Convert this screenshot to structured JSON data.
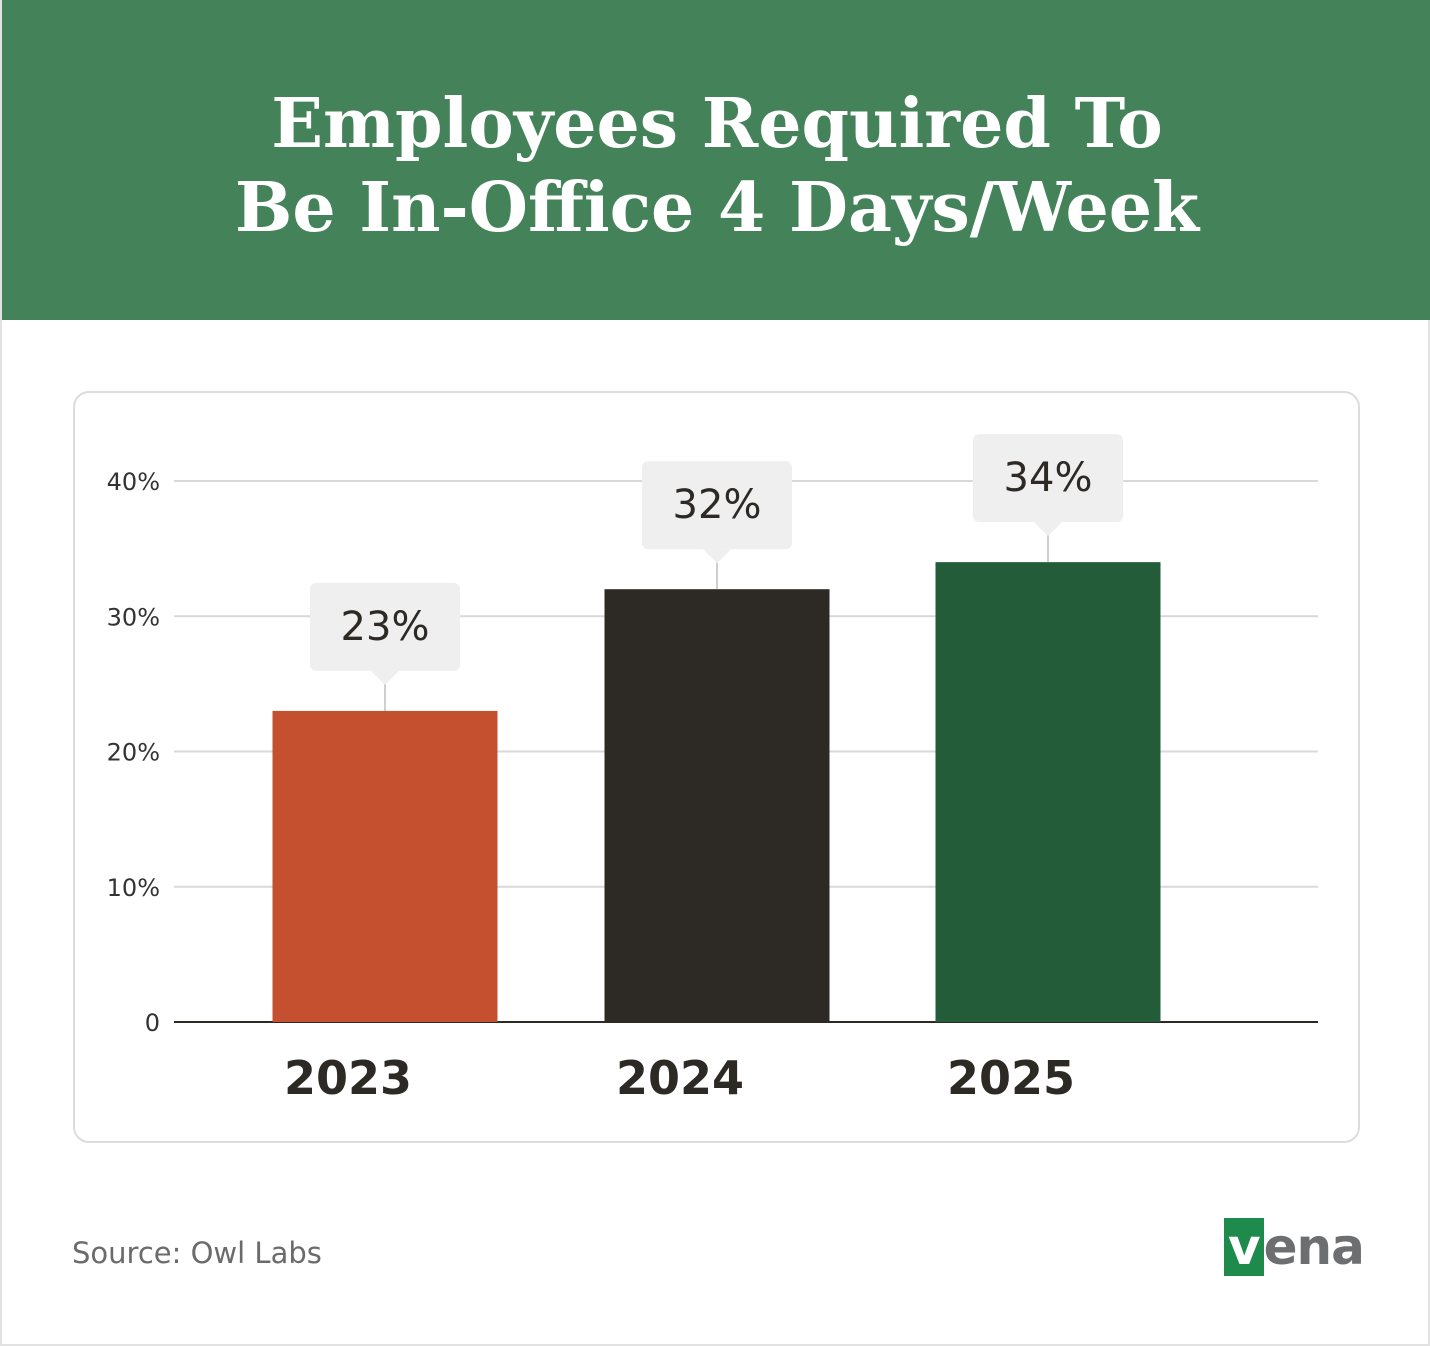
{
  "chart_data": {
    "type": "bar",
    "title": "Employees Required To Be In-Office 4 Days/Week",
    "categories": [
      "2023",
      "2024",
      "2025"
    ],
    "values": [
      23,
      32,
      34
    ],
    "value_labels": [
      "23%",
      "32%",
      "34%"
    ],
    "colors": [
      "#c4502f",
      "#2d2a26",
      "#225c38"
    ],
    "ylim": [
      0,
      40
    ],
    "yticks": [
      0,
      {
        "value": 10,
        "label": "10%"
      },
      {
        "value": 20,
        "label": "20%"
      },
      {
        "value": 30,
        "label": "30%"
      },
      {
        "value": 40,
        "label": "40%"
      }
    ],
    "grid": true,
    "source": "Source: Owl Labs",
    "logo": "vena"
  }
}
